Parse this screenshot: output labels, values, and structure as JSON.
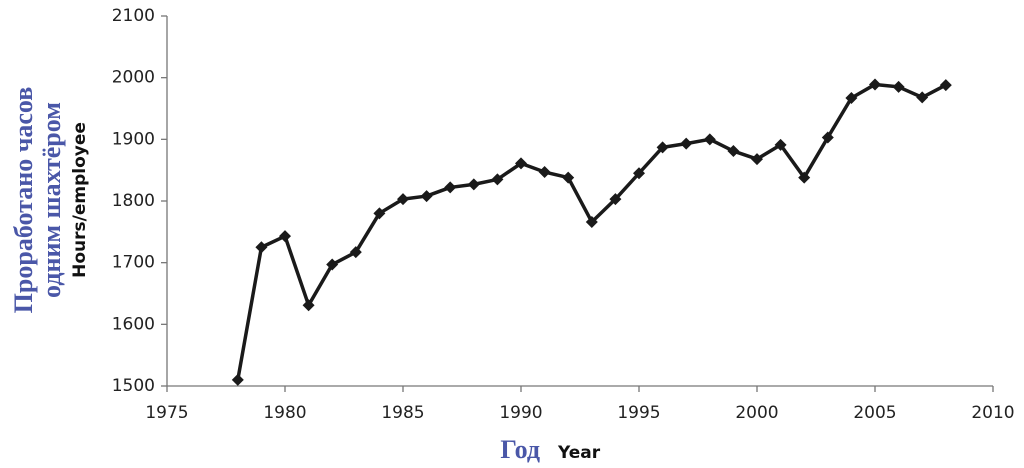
{
  "chart_data": {
    "type": "line",
    "y_label_ru": [
      "Проработано часов",
      "одним шахтёром"
    ],
    "y_label_en": "Hours/employee",
    "x_label_ru": "Год",
    "x_label_en": "Year",
    "x": [
      1978,
      1979,
      1980,
      1981,
      1982,
      1983,
      1984,
      1985,
      1986,
      1987,
      1988,
      1989,
      1990,
      1991,
      1992,
      1993,
      1994,
      1995,
      1996,
      1997,
      1998,
      1999,
      2000,
      2001,
      2002,
      2003,
      2004,
      2005,
      2006,
      2007,
      2008
    ],
    "values": [
      1510,
      1725,
      1743,
      1631,
      1697,
      1717,
      1780,
      1803,
      1808,
      1822,
      1827,
      1835,
      1861,
      1847,
      1838,
      1766,
      1803,
      1845,
      1887,
      1893,
      1900,
      1881,
      1868,
      1891,
      1838,
      1903,
      1967,
      1989,
      1985,
      1968,
      1988
    ],
    "color": "#1a1a1a",
    "xlim": [
      1975,
      2010
    ],
    "xticks": [
      1975,
      1980,
      1985,
      1990,
      1995,
      2000,
      2005,
      2010
    ],
    "ylim": [
      1500,
      2100
    ],
    "yticks": [
      1500,
      1600,
      1700,
      1800,
      1900,
      2000,
      2100
    ],
    "grid": false
  }
}
